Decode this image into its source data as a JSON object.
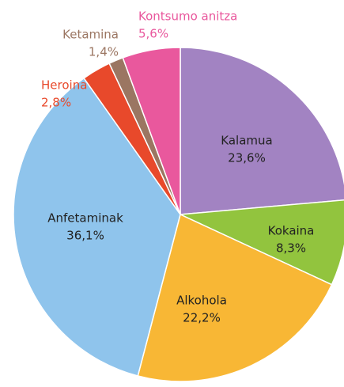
{
  "chart_data": {
    "type": "pie",
    "categories": [
      "Kalamua",
      "Kokaina",
      "Alkohola",
      "Anfetaminak",
      "Heroina",
      "Ketamina",
      "Kontsumo anitza"
    ],
    "values": [
      23.6,
      8.3,
      22.2,
      36.1,
      2.8,
      1.4,
      5.6
    ],
    "value_labels": [
      "23,6%",
      "8,3%",
      "22,2%",
      "36,1%",
      "2,8%",
      "1,4%",
      "5,6%"
    ],
    "colors": [
      "#a283c2",
      "#92c43e",
      "#f8b735",
      "#8fc4ec",
      "#e8492b",
      "#9b7662",
      "#e9589d"
    ]
  }
}
